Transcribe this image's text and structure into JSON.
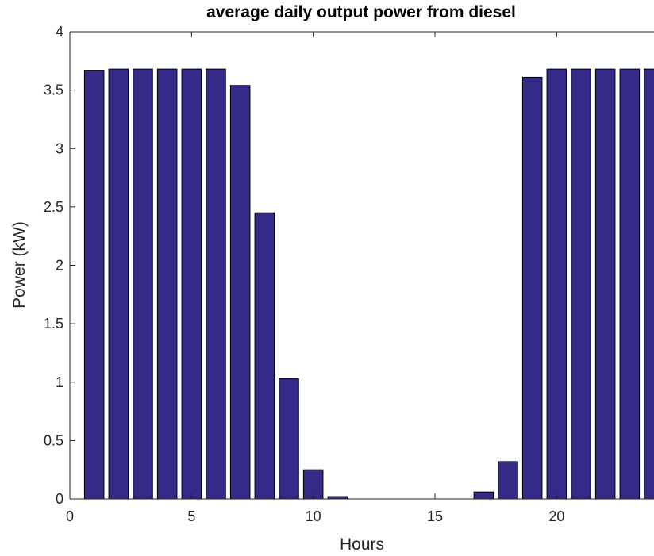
{
  "chart_data": {
    "type": "bar",
    "title": "average daily output power from diesel",
    "xlabel": "Hours",
    "ylabel": "Power (kW)",
    "x": [
      1,
      2,
      3,
      4,
      5,
      6,
      7,
      8,
      9,
      10,
      11,
      12,
      13,
      14,
      15,
      16,
      17,
      18,
      19,
      20,
      21,
      22,
      23,
      24
    ],
    "values": [
      3.67,
      3.68,
      3.68,
      3.68,
      3.68,
      3.68,
      3.54,
      2.45,
      1.03,
      0.25,
      0.02,
      0.0,
      0.0,
      0.0,
      0.0,
      0.0,
      0.06,
      0.32,
      3.61,
      3.68,
      3.68,
      3.68,
      3.68,
      3.68
    ],
    "xlim": [
      0,
      24
    ],
    "ylim": [
      0,
      4
    ],
    "xticks": [
      0,
      5,
      10,
      15,
      20
    ],
    "xtick_labels": [
      "0",
      "5",
      "10",
      "15",
      "20"
    ],
    "yticks": [
      0,
      0.5,
      1,
      1.5,
      2,
      2.5,
      3,
      3.5,
      4
    ],
    "ytick_labels": [
      "0",
      "0.5",
      "1",
      "1.5",
      "2",
      "2.5",
      "3",
      "3.5",
      "4"
    ],
    "grid": false,
    "bar_color": "#342a87",
    "edge_color": "#000000"
  }
}
